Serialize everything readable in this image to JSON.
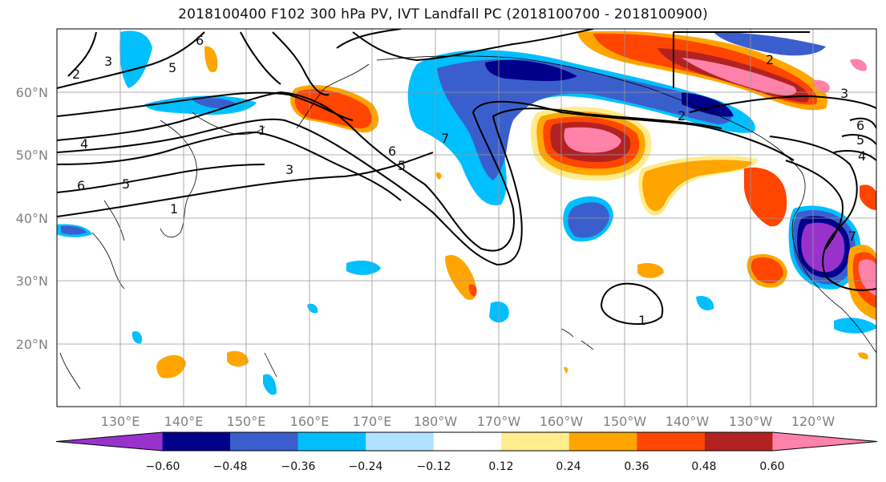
{
  "title": "2018100400 F102 300 hPa PV, IVT Landfall PC (2018100700 - 2018100900)",
  "lat_labels": [
    "20°N",
    "30°N",
    "40°N",
    "50°N",
    "60°N"
  ],
  "lon_labels": [
    "130°E",
    "140°E",
    "150°E",
    "160°E",
    "170°E",
    "180°W",
    "170°W",
    "160°W",
    "150°W",
    "140°W",
    "130°W",
    "120°W"
  ],
  "colorbar": {
    "colors": [
      "#9932cc",
      "#00008b",
      "#3a5fcd",
      "#00bfff",
      "#b0e2ff",
      "#ffffff",
      "#ffec8b",
      "#ffa500",
      "#ff4500",
      "#b22222",
      "#ff82ab"
    ],
    "tick_labels": [
      "−0.60",
      "−0.48",
      "−0.36",
      "−0.24",
      "−0.12",
      "0.12",
      "0.24",
      "0.36",
      "0.48",
      "0.60"
    ]
  },
  "contour_labels": [
    "7",
    "6",
    "5",
    "3",
    "2",
    "4",
    "6",
    "5",
    "1",
    "1",
    "3",
    "6",
    "5",
    "7",
    "2",
    "3",
    "6",
    "5",
    "4",
    "1",
    "2"
  ]
}
